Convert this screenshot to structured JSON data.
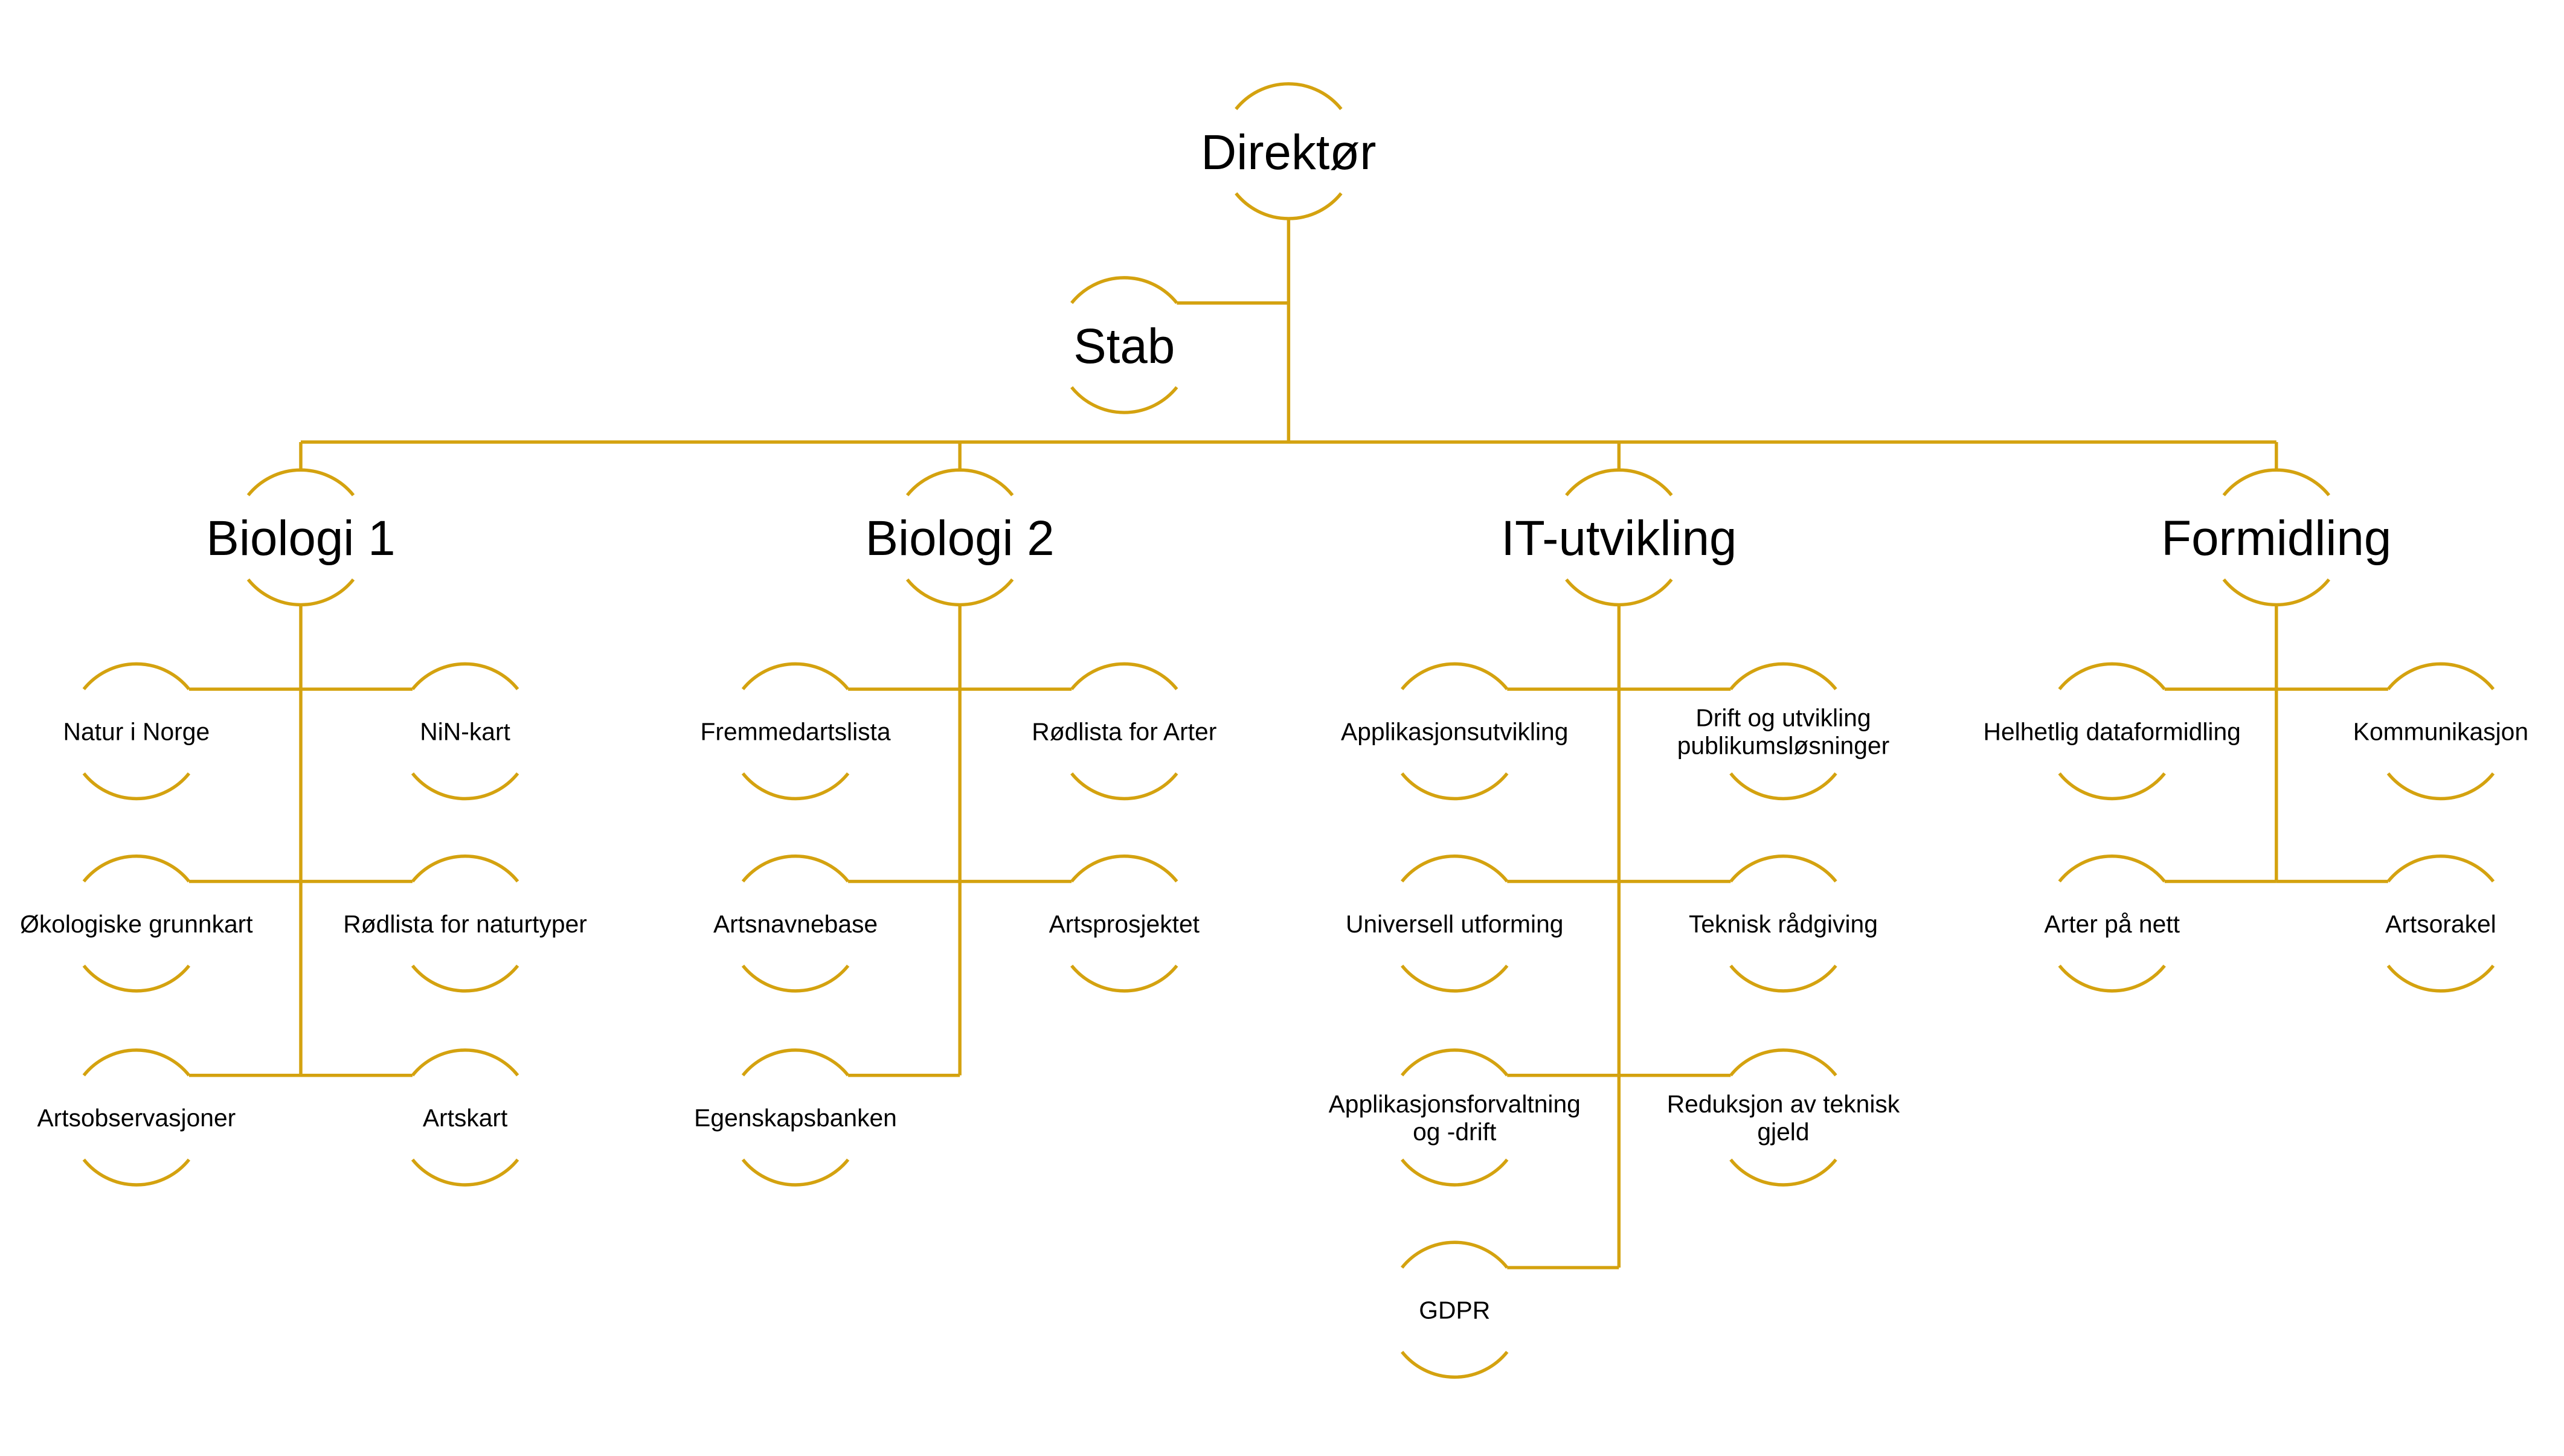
{
  "colors": {
    "line": "#D4A20F",
    "text": "#000000"
  },
  "root": {
    "label": "Direktør"
  },
  "staff": {
    "label": "Stab"
  },
  "departments": [
    {
      "label": "Biologi 1",
      "units": [
        [
          "Natur i Norge"
        ],
        [
          "NiN-kart"
        ],
        [
          "Økologiske grunnkart"
        ],
        [
          "Rødlista for naturtyper"
        ],
        [
          "Artsobservasjoner"
        ],
        [
          "Artskart"
        ]
      ]
    },
    {
      "label": "Biologi 2",
      "units": [
        [
          "Fremmedartslista"
        ],
        [
          "Rødlista for Arter"
        ],
        [
          "Artsnavnebase"
        ],
        [
          "Artsprosjektet"
        ],
        [
          "Egenskapsbanken"
        ]
      ]
    },
    {
      "label": "IT-utvikling",
      "units": [
        [
          "Applikasjonsutvikling"
        ],
        [
          "Drift og utvikling",
          "publikumsløsninger"
        ],
        [
          "Universell utforming"
        ],
        [
          "Teknisk rådgiving"
        ],
        [
          "Applikasjonsforvaltning",
          "og -drift"
        ],
        [
          "Reduksjon av teknisk",
          "gjeld"
        ],
        [
          "GDPR"
        ]
      ]
    },
    {
      "label": "Formidling",
      "units": [
        [
          "Helhetlig dataformidling"
        ],
        [
          "Kommunikasjon"
        ],
        [
          "Arter på nett"
        ],
        [
          "Artsorakel"
        ]
      ]
    }
  ]
}
